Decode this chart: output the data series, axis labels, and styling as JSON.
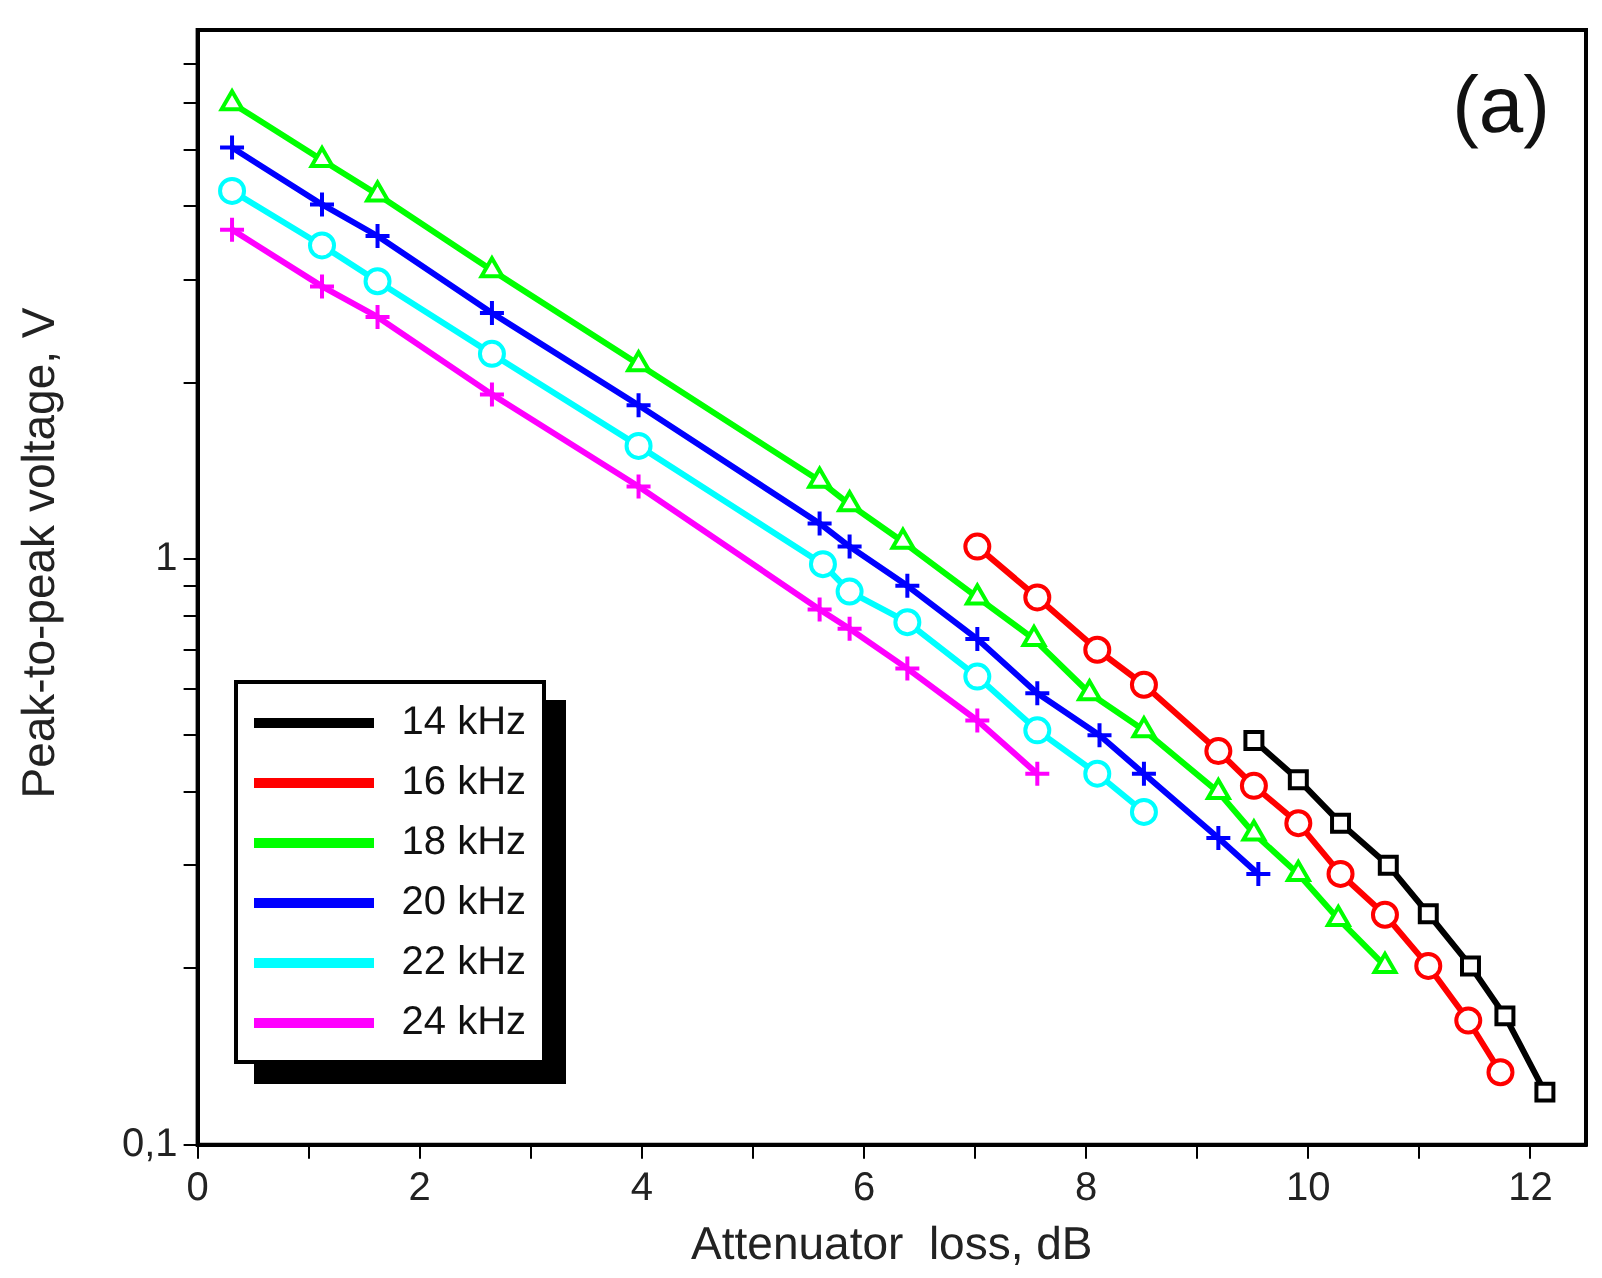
{
  "chart_data": {
    "type": "line",
    "xlabel": "Attenuator  loss, dB",
    "ylabel": "Peak-to-peak voltage, V",
    "annotations": [
      "(a)"
    ],
    "xlim": [
      0,
      12.5
    ],
    "xticks": [
      0,
      {
        "value": 1,
        "label": null
      },
      2,
      {
        "value": 3,
        "label": null
      },
      4,
      {
        "value": 5,
        "label": null
      },
      6,
      {
        "value": 7,
        "label": null
      },
      8,
      {
        "value": 9,
        "label": null
      },
      10,
      {
        "value": 11,
        "label": null
      },
      12
    ],
    "ylim": [
      0.1,
      8
    ],
    "yticks": [
      {
        "value": 0.1,
        "label": "0,1"
      },
      {
        "value": 0.2,
        "label": null
      },
      {
        "value": 0.3,
        "label": null
      },
      {
        "value": 0.4,
        "label": null
      },
      {
        "value": 0.5,
        "label": null
      },
      {
        "value": 0.6,
        "label": null
      },
      {
        "value": 0.7,
        "label": null
      },
      {
        "value": 0.8,
        "label": null
      },
      {
        "value": 0.9,
        "label": null
      },
      1,
      {
        "value": 2,
        "label": null
      },
      {
        "value": 3,
        "label": null
      },
      {
        "value": 4,
        "label": null
      },
      {
        "value": 5,
        "label": null
      },
      {
        "value": 6,
        "label": null
      },
      {
        "value": 7,
        "label": null
      }
    ],
    "log": "y",
    "grid": false,
    "legend": "bottom left",
    "line_style": "solid",
    "series": [
      {
        "name": "14 kHz",
        "color": "#000000",
        "marker": "square",
        "x": [
          9.51,
          9.91,
          10.29,
          10.72,
          11.08,
          11.46,
          11.77,
          12.13
        ],
        "values": [
          0.49,
          0.42,
          0.354,
          0.3,
          0.248,
          0.202,
          0.166,
          0.123
        ]
      },
      {
        "name": "16 kHz",
        "color": "#ff0000",
        "marker": "circle",
        "x": [
          7.02,
          7.56,
          8.1,
          8.52,
          9.19,
          9.51,
          9.91,
          10.29,
          10.69,
          11.08,
          11.44,
          11.73
        ],
        "values": [
          1.05,
          0.86,
          0.7,
          0.61,
          0.47,
          0.41,
          0.354,
          0.29,
          0.247,
          0.202,
          0.163,
          0.133
        ]
      },
      {
        "name": "18 kHz",
        "color": "#00ff00",
        "marker": "triangle",
        "x": [
          0.31,
          1.12,
          1.62,
          2.65,
          3.97,
          5.6,
          5.87,
          6.35,
          7.02,
          7.53,
          8.03,
          8.52,
          9.19,
          9.51,
          9.91,
          10.27,
          10.69
        ],
        "values": [
          6.0,
          4.8,
          4.19,
          3.11,
          2.15,
          1.36,
          1.24,
          1.07,
          0.86,
          0.73,
          0.59,
          0.51,
          0.4,
          0.34,
          0.29,
          0.243,
          0.202
        ]
      },
      {
        "name": "20 kHz",
        "color": "#0000ff",
        "marker": "cross",
        "x": [
          0.31,
          1.12,
          1.62,
          2.65,
          3.97,
          5.6,
          5.87,
          6.39,
          7.02,
          7.56,
          8.12,
          8.52,
          9.19,
          9.55
        ],
        "values": [
          5.04,
          4.03,
          3.56,
          2.63,
          1.83,
          1.15,
          1.05,
          0.9,
          0.73,
          0.59,
          0.5,
          0.43,
          0.334,
          0.29
        ]
      },
      {
        "name": "22 kHz",
        "color": "#00ffff",
        "marker": "circle",
        "x": [
          0.31,
          1.12,
          1.62,
          2.65,
          3.97,
          5.63,
          5.87,
          6.39,
          7.02,
          7.56,
          8.1,
          8.52
        ],
        "values": [
          4.25,
          3.43,
          2.98,
          2.24,
          1.56,
          0.98,
          0.88,
          0.78,
          0.63,
          0.51,
          0.43,
          0.37
        ]
      },
      {
        "name": "24 kHz",
        "color": "#ff00ff",
        "marker": "cross",
        "x": [
          0.31,
          1.12,
          1.62,
          2.65,
          3.97,
          5.6,
          5.87,
          6.39,
          7.02,
          7.56
        ],
        "values": [
          3.65,
          2.92,
          2.59,
          1.91,
          1.33,
          0.82,
          0.76,
          0.65,
          0.53,
          0.43
        ]
      }
    ]
  }
}
